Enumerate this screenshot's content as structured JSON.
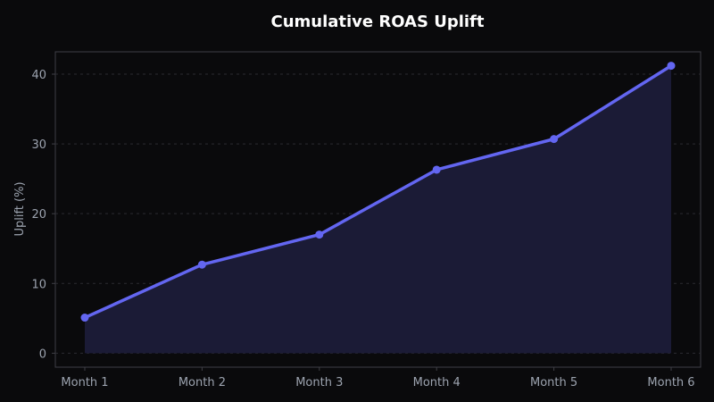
{
  "chart_data": {
    "type": "area",
    "title": "Cumulative ROAS Uplift",
    "xlabel": "",
    "ylabel": "Uplift (%)",
    "categories": [
      "Month 1",
      "Month 2",
      "Month 3",
      "Month 4",
      "Month 5",
      "Month 6"
    ],
    "series": [
      {
        "values": [
          5.1,
          12.7,
          17.0,
          26.3,
          30.7,
          41.2
        ]
      }
    ],
    "ylim": [
      -2,
      43.2
    ],
    "y_ticks": [
      "0",
      "10",
      "20",
      "30",
      "40"
    ],
    "grid": true,
    "line_color": "#6366f1",
    "fill_color": "#1b1b36",
    "background_color": "#0a0a0c",
    "title_color": "#ffffff",
    "tick_color": "#9ca3af",
    "frame_color": "#3f3f46",
    "grid_color": "#2a2a30"
  }
}
